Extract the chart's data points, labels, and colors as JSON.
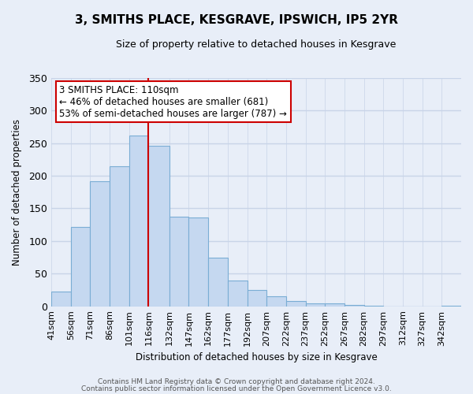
{
  "title": "3, SMITHS PLACE, KESGRAVE, IPSWICH, IP5 2YR",
  "subtitle": "Size of property relative to detached houses in Kesgrave",
  "xlabel": "Distribution of detached houses by size in Kesgrave",
  "ylabel": "Number of detached properties",
  "categories": [
    "41sqm",
    "56sqm",
    "71sqm",
    "86sqm",
    "101sqm",
    "116sqm",
    "132sqm",
    "147sqm",
    "162sqm",
    "177sqm",
    "192sqm",
    "207sqm",
    "222sqm",
    "237sqm",
    "252sqm",
    "267sqm",
    "282sqm",
    "297sqm",
    "312sqm",
    "327sqm",
    "342sqm"
  ],
  "values": [
    23,
    121,
    192,
    214,
    262,
    246,
    137,
    136,
    75,
    40,
    25,
    15,
    8,
    5,
    4,
    2,
    1,
    0,
    0,
    0,
    1
  ],
  "bar_color": "#c5d8f0",
  "bar_edge_color": "#7aadd4",
  "ylim": [
    0,
    350
  ],
  "yticks": [
    0,
    50,
    100,
    150,
    200,
    250,
    300,
    350
  ],
  "marker_label": "3 SMITHS PLACE: 110sqm",
  "annotation_line1": "← 46% of detached houses are smaller (681)",
  "annotation_line2": "53% of semi-detached houses are larger (787) →",
  "footer_line1": "Contains HM Land Registry data © Crown copyright and database right 2024.",
  "footer_line2": "Contains public sector information licensed under the Open Government Licence v3.0.",
  "bin_edges": [
    41,
    56,
    71,
    86,
    101,
    116,
    132,
    147,
    162,
    177,
    192,
    207,
    222,
    237,
    252,
    267,
    282,
    297,
    312,
    327,
    342,
    357
  ],
  "bg_color": "#e8eef8",
  "grid_color": "#c8d4e8",
  "red_line_x": 116
}
